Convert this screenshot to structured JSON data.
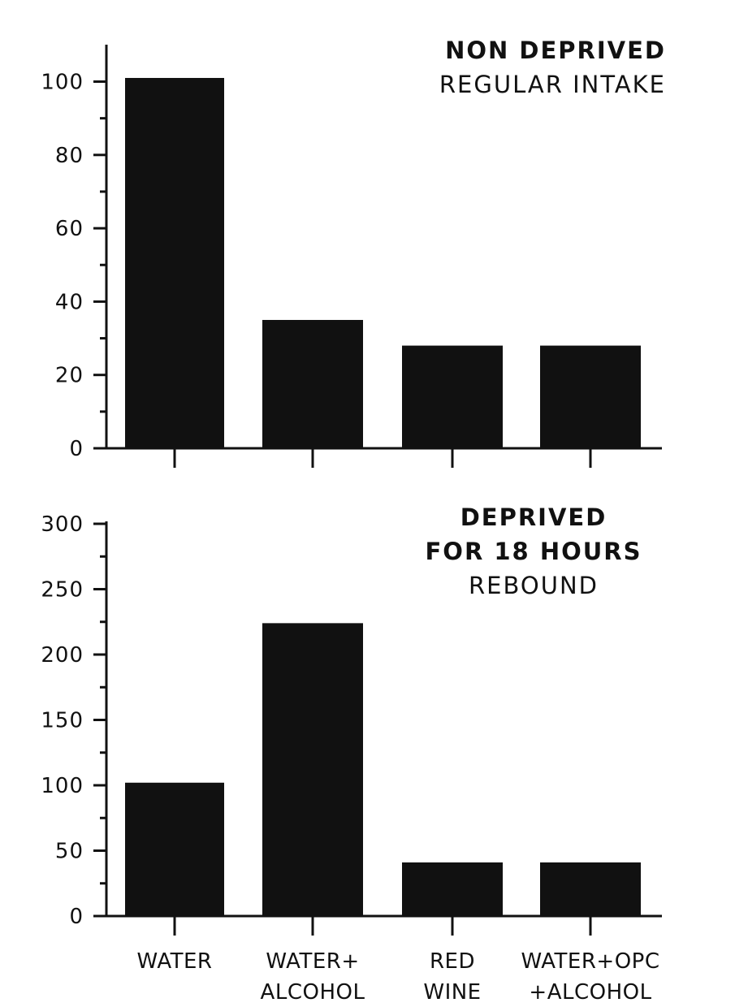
{
  "chart_data": [
    {
      "type": "bar",
      "title_lines": [
        "NON DEPRIVED",
        "REGULAR INTAKE"
      ],
      "categories": [
        "WATER",
        "WATER+ ALCOHOL",
        "RED WINE",
        "WATER+OPC +ALCOHOL"
      ],
      "values": [
        101,
        35,
        28,
        28
      ],
      "ylim": [
        0,
        110
      ],
      "yticks": [
        0,
        20,
        40,
        60,
        80,
        100
      ],
      "minor_tick_step": 10,
      "bar_color": "#111111",
      "grid": false
    },
    {
      "type": "bar",
      "title_lines": [
        "DEPRIVED",
        "FOR 18 HOURS",
        "REBOUND"
      ],
      "categories": [
        "WATER",
        "WATER+ ALCOHOL",
        "RED WINE",
        "WATER+OPC +ALCOHOL"
      ],
      "category_label_lines": [
        [
          "WATER"
        ],
        [
          "WATER+",
          "ALCOHOL"
        ],
        [
          "RED",
          "WINE"
        ],
        [
          "WATER+OPC",
          "+ALCOHOL"
        ]
      ],
      "values": [
        102,
        224,
        41,
        41
      ],
      "ylim": [
        0,
        300
      ],
      "yticks": [
        0,
        50,
        100,
        150,
        200,
        250,
        300
      ],
      "minor_tick_step": 25,
      "bar_color": "#111111",
      "grid": false
    }
  ]
}
